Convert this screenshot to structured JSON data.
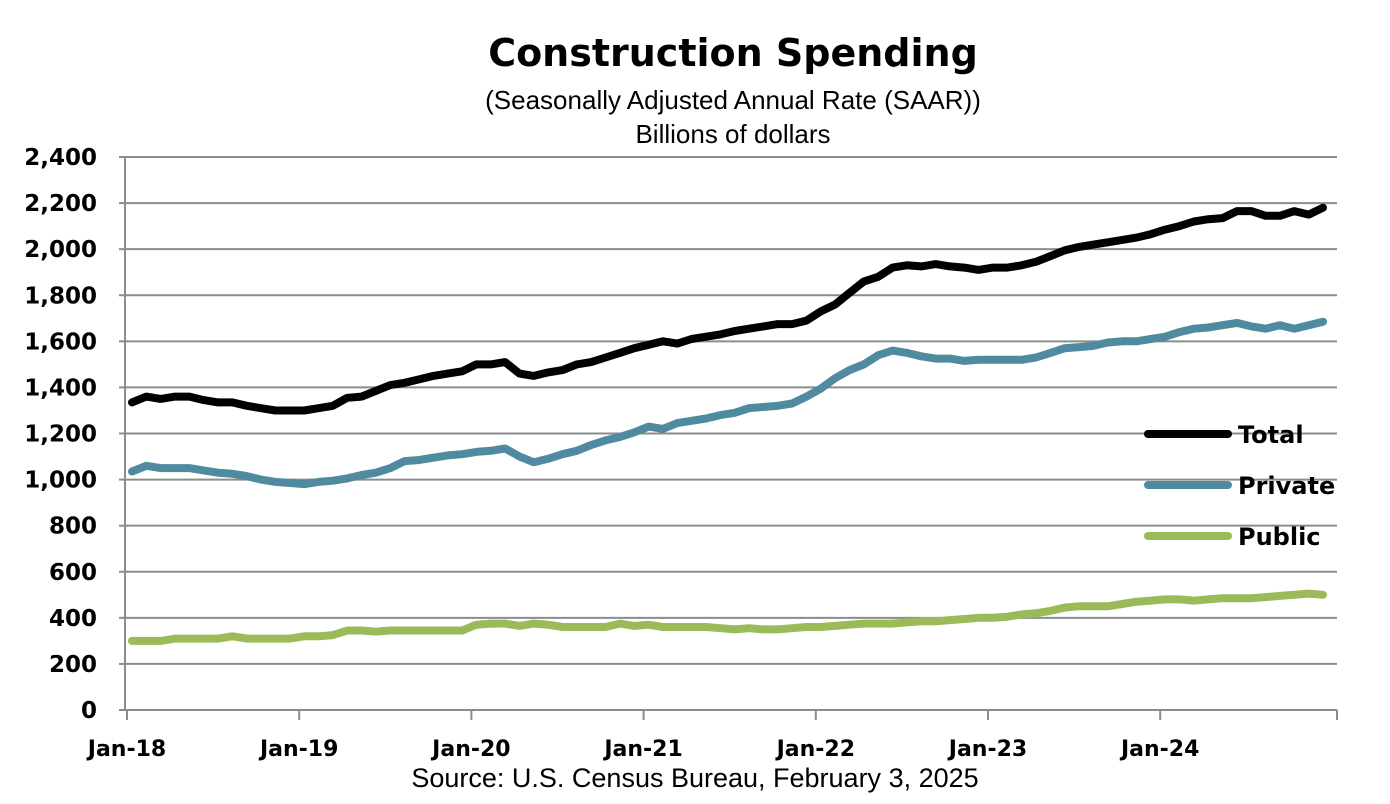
{
  "chart_data": {
    "type": "line",
    "title": "Construction Spending",
    "subtitle": "(Seasonally Adjusted Annual Rate (SAAR))",
    "units": "Billions of dollars",
    "xlabel": "",
    "ylabel": "",
    "ylim": [
      0,
      2400
    ],
    "yticks": [
      "0",
      "200",
      "400",
      "600",
      "800",
      "1,000",
      "1,200",
      "1,400",
      "1,600",
      "1,800",
      "2,000",
      "2,200",
      "2,400"
    ],
    "xticks": [
      "Jan-18",
      "Jan-19",
      "Jan-20",
      "Jan-21",
      "Jan-22",
      "Jan-23",
      "Jan-24"
    ],
    "grid": true,
    "legend_position": "right",
    "source": "Source: U.S. Census  Bureau, February 3, 2025",
    "x": [
      "Jan-18",
      "Feb-18",
      "Mar-18",
      "Apr-18",
      "May-18",
      "Jun-18",
      "Jul-18",
      "Aug-18",
      "Sep-18",
      "Oct-18",
      "Nov-18",
      "Dec-18",
      "Jan-19",
      "Feb-19",
      "Mar-19",
      "Apr-19",
      "May-19",
      "Jun-19",
      "Jul-19",
      "Aug-19",
      "Sep-19",
      "Oct-19",
      "Nov-19",
      "Dec-19",
      "Jan-20",
      "Feb-20",
      "Mar-20",
      "Apr-20",
      "May-20",
      "Jun-20",
      "Jul-20",
      "Aug-20",
      "Sep-20",
      "Oct-20",
      "Nov-20",
      "Dec-20",
      "Jan-21",
      "Feb-21",
      "Mar-21",
      "Apr-21",
      "May-21",
      "Jun-21",
      "Jul-21",
      "Aug-21",
      "Sep-21",
      "Oct-21",
      "Nov-21",
      "Dec-21",
      "Jan-22",
      "Feb-22",
      "Mar-22",
      "Apr-22",
      "May-22",
      "Jun-22",
      "Jul-22",
      "Aug-22",
      "Sep-22",
      "Oct-22",
      "Nov-22",
      "Dec-22",
      "Jan-23",
      "Feb-23",
      "Mar-23",
      "Apr-23",
      "May-23",
      "Jun-23",
      "Jul-23",
      "Aug-23",
      "Sep-23",
      "Oct-23",
      "Nov-23",
      "Dec-23",
      "Jan-24",
      "Feb-24",
      "Mar-24",
      "Apr-24",
      "May-24",
      "Jun-24",
      "Jul-24",
      "Aug-24",
      "Sep-24",
      "Oct-24",
      "Nov-24",
      "Dec-24"
    ],
    "series": [
      {
        "name": "Total",
        "color": "#000000",
        "values": [
          1335,
          1360,
          1350,
          1360,
          1360,
          1345,
          1335,
          1335,
          1320,
          1310,
          1300,
          1300,
          1300,
          1310,
          1320,
          1355,
          1360,
          1385,
          1410,
          1420,
          1435,
          1450,
          1460,
          1470,
          1500,
          1500,
          1510,
          1460,
          1450,
          1465,
          1475,
          1500,
          1510,
          1530,
          1550,
          1570,
          1585,
          1600,
          1590,
          1610,
          1620,
          1630,
          1645,
          1655,
          1665,
          1675,
          1675,
          1690,
          1730,
          1760,
          1810,
          1860,
          1880,
          1920,
          1930,
          1925,
          1935,
          1925,
          1920,
          1910,
          1920,
          1920,
          1930,
          1945,
          1970,
          1995,
          2010,
          2020,
          2030,
          2040,
          2050,
          2065,
          2085,
          2100,
          2120,
          2130,
          2135,
          2165,
          2165,
          2145,
          2145,
          2165,
          2150,
          2180
        ]
      },
      {
        "name": "Private",
        "color": "#4f8aa0",
        "values": [
          1035,
          1060,
          1050,
          1050,
          1050,
          1040,
          1030,
          1025,
          1015,
          1000,
          990,
          985,
          980,
          990,
          995,
          1005,
          1020,
          1030,
          1050,
          1080,
          1085,
          1095,
          1105,
          1110,
          1120,
          1125,
          1135,
          1100,
          1075,
          1090,
          1110,
          1125,
          1150,
          1170,
          1185,
          1205,
          1230,
          1220,
          1245,
          1255,
          1265,
          1280,
          1290,
          1310,
          1315,
          1320,
          1330,
          1360,
          1395,
          1440,
          1475,
          1500,
          1540,
          1560,
          1550,
          1535,
          1525,
          1525,
          1515,
          1520,
          1520,
          1520,
          1520,
          1530,
          1550,
          1570,
          1575,
          1580,
          1595,
          1600,
          1600,
          1610,
          1620,
          1640,
          1655,
          1660,
          1670,
          1680,
          1665,
          1655,
          1670,
          1655,
          1670,
          1685
        ]
      },
      {
        "name": "Public",
        "color": "#9bbb59",
        "values": [
          300,
          300,
          300,
          310,
          310,
          310,
          310,
          320,
          310,
          310,
          310,
          310,
          320,
          320,
          325,
          345,
          345,
          340,
          345,
          345,
          345,
          345,
          345,
          345,
          370,
          375,
          375,
          365,
          375,
          370,
          360,
          360,
          360,
          360,
          375,
          365,
          370,
          360,
          360,
          360,
          360,
          355,
          350,
          355,
          350,
          350,
          355,
          360,
          360,
          365,
          370,
          375,
          375,
          375,
          380,
          385,
          385,
          390,
          395,
          400,
          400,
          405,
          415,
          420,
          430,
          445,
          450,
          450,
          450,
          460,
          470,
          475,
          480,
          480,
          475,
          480,
          485,
          485,
          485,
          490,
          495,
          500,
          505,
          500
        ]
      }
    ]
  }
}
